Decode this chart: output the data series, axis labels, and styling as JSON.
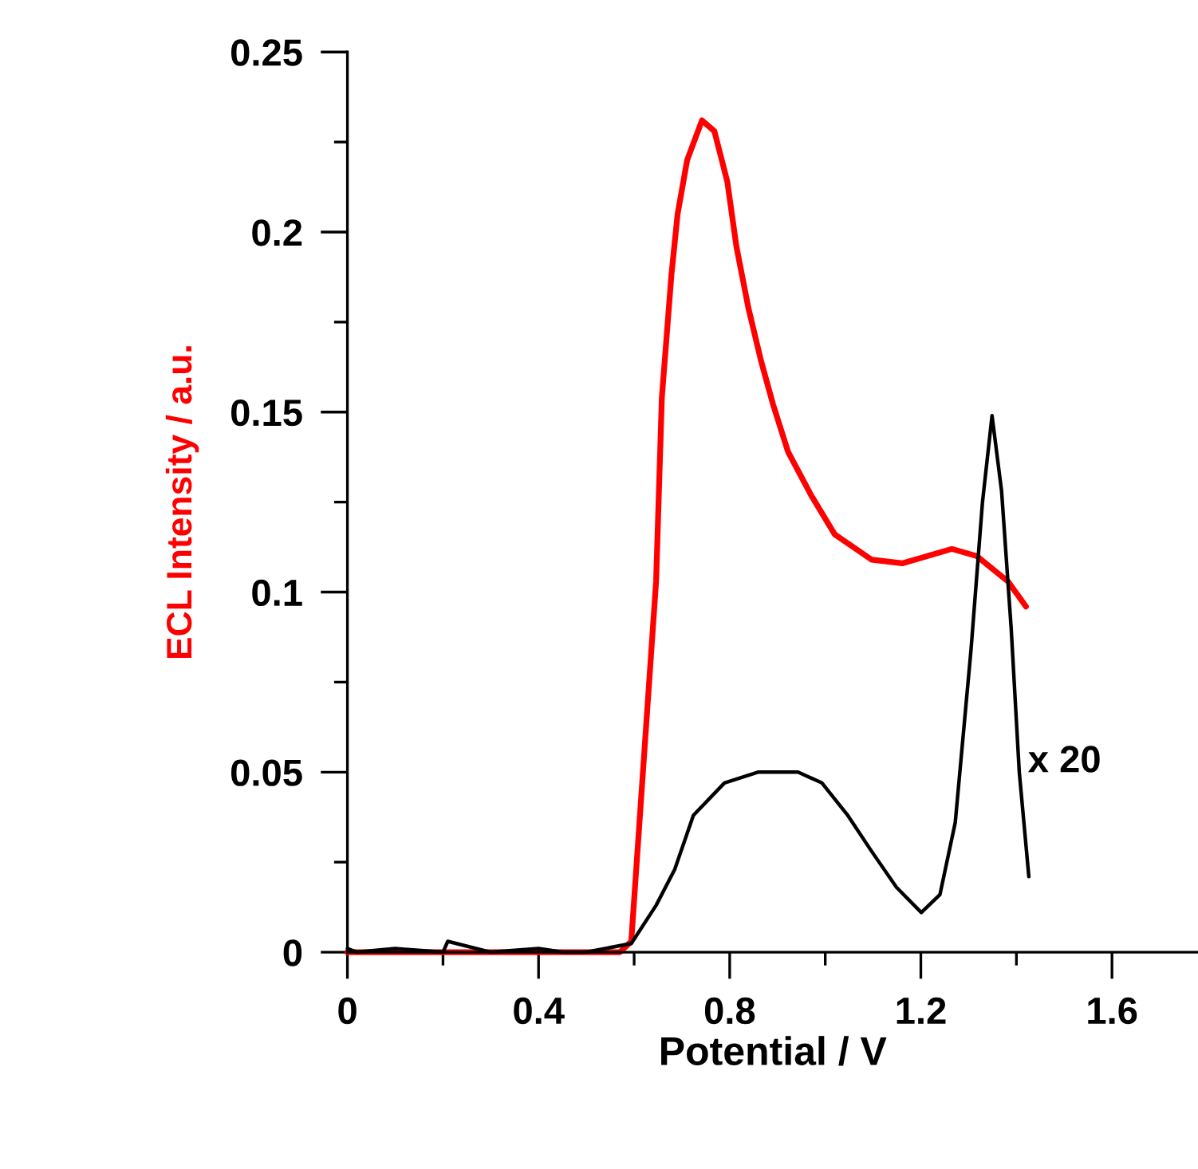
{
  "chart_data": {
    "type": "line",
    "xlabel": "Potential / V",
    "ylabel": "ECL Intensity / a.u.",
    "xlim": [
      0,
      1.78
    ],
    "ylim": [
      0,
      0.25
    ],
    "xticks": [
      0,
      0.4,
      0.8,
      1.2,
      1.6
    ],
    "yticks": [
      0,
      0.05,
      0.1,
      0.15,
      0.2,
      0.25
    ],
    "grid": false,
    "legend": false,
    "marker": "none",
    "line_style": "solid",
    "annotations": [
      "x 20"
    ],
    "series": [
      {
        "color": "#ff0000",
        "x": [
          0,
          0.2,
          0.4,
          0.57,
          0.594,
          0.646,
          0.658,
          0.678,
          0.691,
          0.711,
          0.742,
          0.768,
          0.795,
          0.814,
          0.839,
          0.866,
          0.891,
          0.922,
          0.97,
          1.02,
          1.097,
          1.161,
          1.265,
          1.317,
          1.382,
          1.42
        ],
        "values": [
          0,
          0,
          0,
          0,
          0.003,
          0.103,
          0.154,
          0.188,
          0.205,
          0.22,
          0.231,
          0.228,
          0.214,
          0.196,
          0.179,
          0.164,
          0.152,
          0.139,
          0.127,
          0.116,
          0.109,
          0.108,
          0.112,
          0.11,
          0.103,
          0.096
        ]
      },
      {
        "color": "#000000",
        "x": [
          0,
          0.02,
          0.1,
          0.2,
          0.21,
          0.3,
          0.4,
          0.45,
          0.5,
          0.594,
          0.646,
          0.685,
          0.724,
          0.789,
          0.859,
          0.943,
          0.993,
          1.047,
          1.097,
          1.149,
          1.201,
          1.24,
          1.272,
          1.305,
          1.329,
          1.349,
          1.369,
          1.389,
          1.406,
          1.426
        ],
        "values": [
          0.001,
          0,
          0.001,
          0,
          0.003,
          0,
          0.001,
          0,
          0,
          0.0024,
          0.013,
          0.023,
          0.038,
          0.047,
          0.05,
          0.05,
          0.047,
          0.038,
          0.028,
          0.018,
          0.011,
          0.016,
          0.036,
          0.084,
          0.125,
          0.149,
          0.128,
          0.09,
          0.05,
          0.021
        ]
      }
    ]
  }
}
